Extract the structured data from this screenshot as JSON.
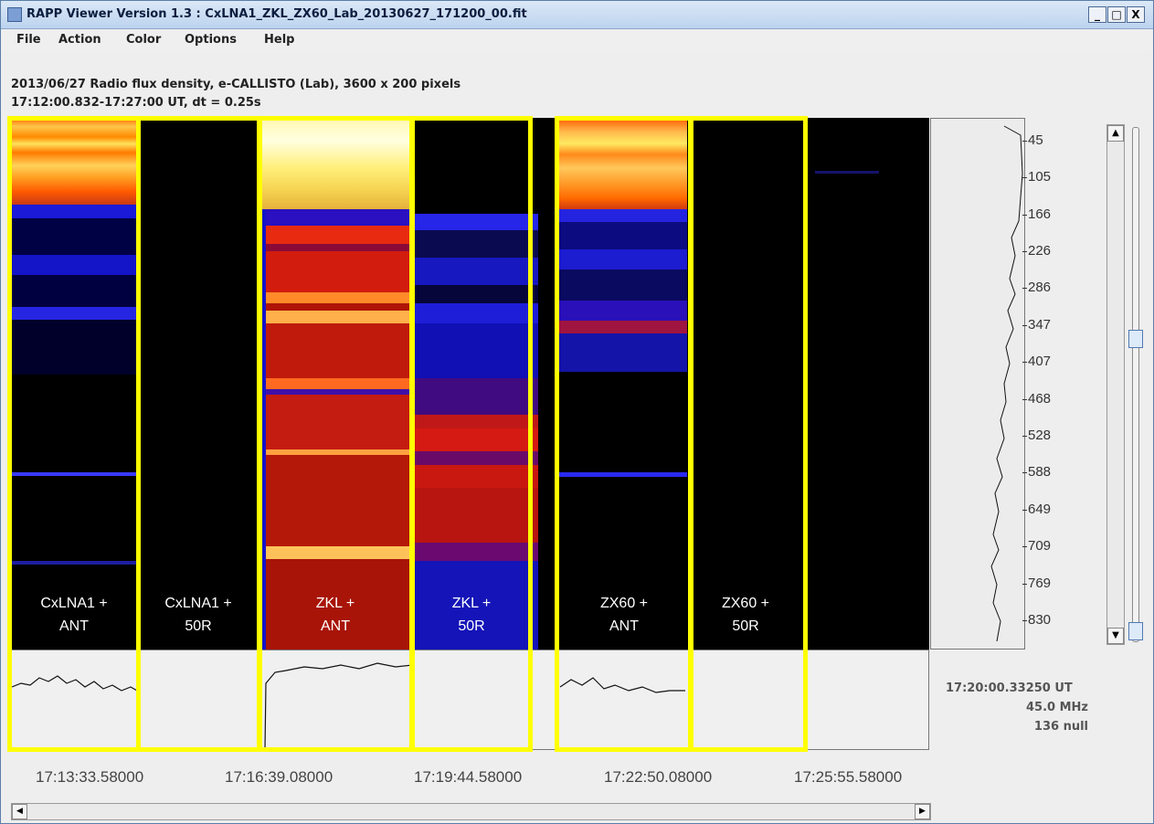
{
  "window": {
    "title": "RAPP Viewer Version 1.3 : CxLNA1_ZKL_ZX60_Lab_20130627_171200_00.fit"
  },
  "window_controls": {
    "minimize": "_",
    "maximize": "□",
    "close": "X"
  },
  "menu": [
    "File",
    "Action",
    "Color",
    "Options",
    "Help"
  ],
  "info": {
    "line1": "2013/06/27  Radio flux density, e-CALLISTO (Lab),  3600 x 200 pixels",
    "line2": "17:12:00.832-17:27:00 UT,  dt = 0.25s"
  },
  "freq_ticks": [
    "45",
    "105",
    "166",
    "226",
    "286",
    "347",
    "407",
    "468",
    "528",
    "588",
    "649",
    "709",
    "769",
    "830"
  ],
  "time_ticks": [
    "17:13:33.58000",
    "17:16:39.08000",
    "17:19:44.58000",
    "17:22:50.08000",
    "17:25:55.58000"
  ],
  "readout": {
    "time": "17:20:00.33250 UT",
    "freq": "45.0 MHz",
    "value": "136 null"
  },
  "annotations": [
    {
      "line1": "CxLNA1 +",
      "line2": "ANT"
    },
    {
      "line1": "CxLNA1 +",
      "line2": "50R"
    },
    {
      "line1": "ZKL +",
      "line2": "ANT"
    },
    {
      "line1": "ZKL +",
      "line2": "50R"
    },
    {
      "line1": "ZX60 +",
      "line2": "ANT"
    },
    {
      "line1": "ZX60 +",
      "line2": "50R"
    }
  ],
  "scroll_glyphs": {
    "up": "▲",
    "down": "▼",
    "left": "◀",
    "right": "▶"
  },
  "colors": {
    "highlight": "#ffff00",
    "background": "#000000"
  }
}
